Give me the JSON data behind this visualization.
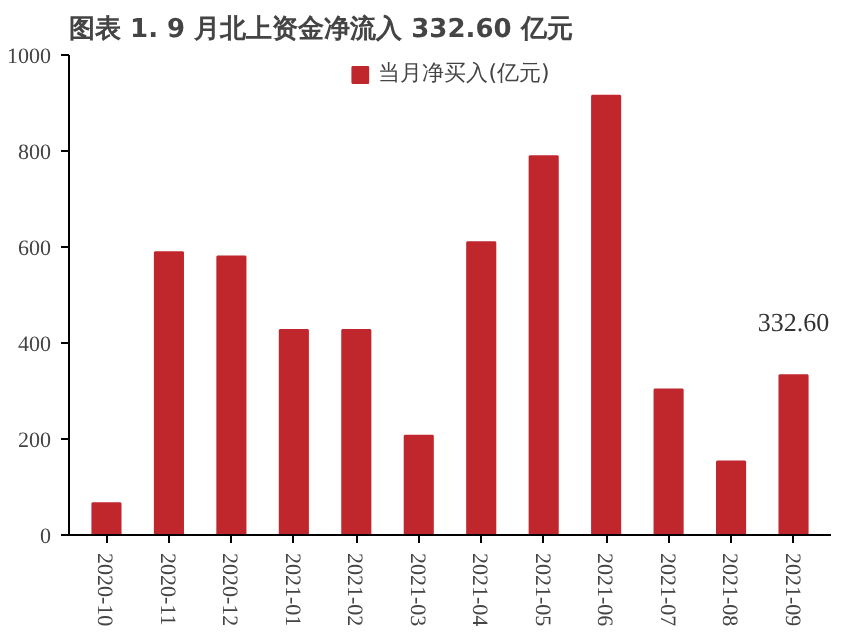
{
  "chart_data": {
    "type": "bar",
    "title": "图表 1.   9 月北上资金净流入 332.60 亿元",
    "categories": [
      "2020-10",
      "2020-11",
      "2020-12",
      "2021-01",
      "2021-02",
      "2021-03",
      "2021-04",
      "2021-05",
      "2021-06",
      "2021-07",
      "2021-08",
      "2021-09"
    ],
    "series": [
      {
        "name": "当月净买入(亿元)",
        "color": "#c0272d",
        "values": [
          66,
          589,
          580,
          427,
          427,
          207,
          610,
          789,
          915,
          303,
          153,
          332.6
        ],
        "value_labels": [
          null,
          null,
          null,
          null,
          null,
          null,
          null,
          null,
          null,
          null,
          null,
          "332.60"
        ]
      }
    ],
    "ylim": [
      0,
      1000
    ],
    "yticks": [
      0,
      200,
      400,
      600,
      800,
      1000
    ],
    "grid": false,
    "legend": "top"
  }
}
